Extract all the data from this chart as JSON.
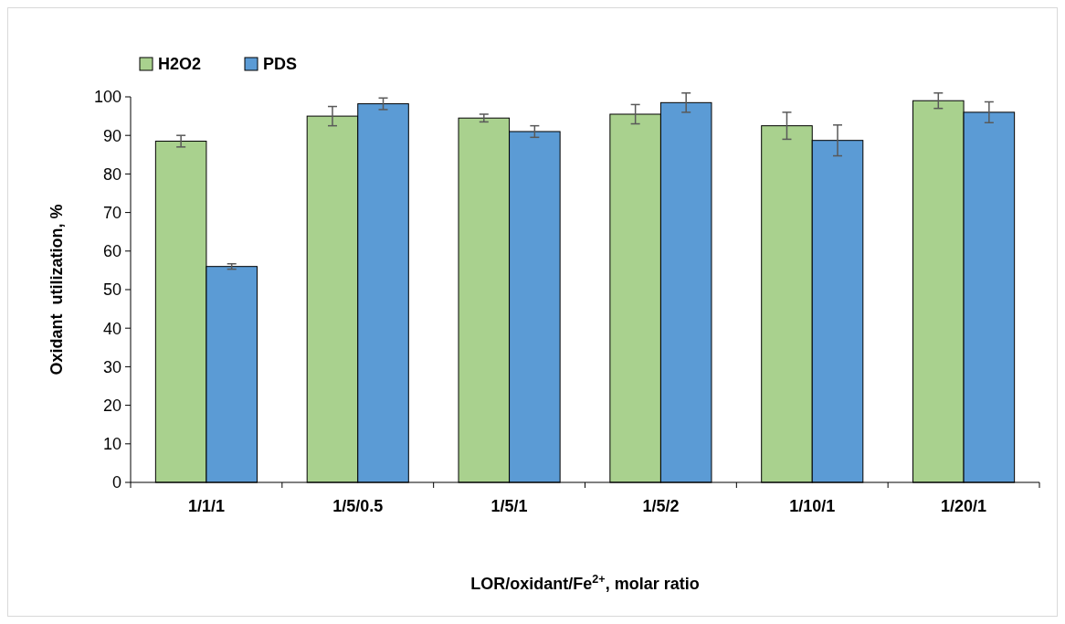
{
  "chart_data": {
    "type": "bar",
    "xlabel": "LOR/oxidant/Fe$^{2+}$, molar ratio",
    "ylabel": "Oxidant  utilization, %",
    "categories": [
      "1/1/1",
      "1/5/0.5",
      "1/5/1",
      "1/5/2",
      "1/10/1",
      "1/20/1"
    ],
    "series": [
      {
        "name": "H2O2",
        "color": "#a9d18e",
        "values": [
          88.5,
          95,
          94.5,
          95.5,
          92.5,
          99
        ],
        "errors": [
          1.5,
          2.5,
          1,
          2.5,
          3.5,
          2
        ]
      },
      {
        "name": "PDS",
        "color": "#5b9bd5",
        "values": [
          56,
          98.2,
          91,
          98.5,
          88.7,
          96
        ],
        "errors": [
          0.7,
          1.5,
          1.5,
          2.5,
          4,
          2.7
        ]
      }
    ],
    "ylim": [
      0,
      100
    ],
    "yticks": [
      0,
      10,
      20,
      30,
      40,
      50,
      60,
      70,
      80,
      90,
      100
    ],
    "grid": false,
    "legend": "top"
  }
}
